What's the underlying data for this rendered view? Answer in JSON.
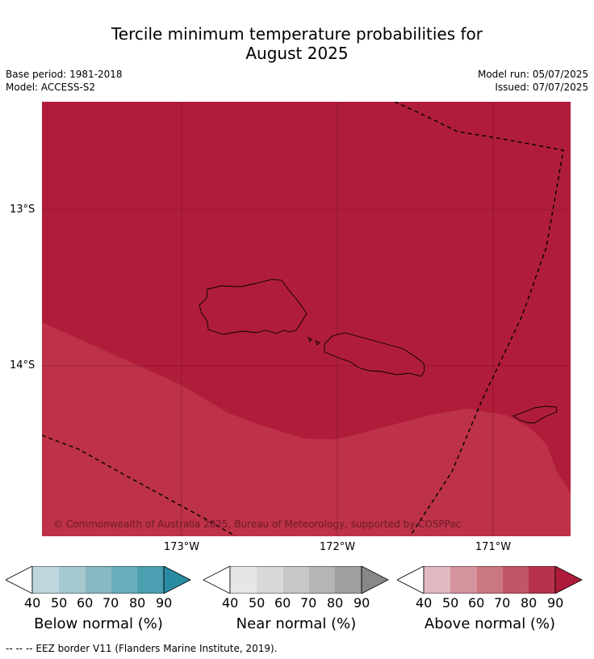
{
  "title_line1": "Tercile minimum temperature probabilities for",
  "title_line2": "August 2025",
  "base_period": "Base period: 1981-2018",
  "model": "Model: ACCESS-S2",
  "model_run": "Model run: 05/07/2025",
  "issued": "Issued: 07/07/2025",
  "lat_labels": [
    "13°S",
    "14°S"
  ],
  "lon_labels": [
    "173°W",
    "172°W",
    "171°W"
  ],
  "copyright": "© Commonwealth of Australia 2025, Bureau of Meteorology, supported by COSPPac",
  "colorbars": [
    {
      "title": "Below normal (%)",
      "ticks": [
        "40",
        "50",
        "60",
        "70",
        "80",
        "90"
      ],
      "colors": [
        "#bfd6dd",
        "#a6c9d0",
        "#88b8c4",
        "#6aaebc",
        "#4b9fb0",
        "#2a8ca3"
      ]
    },
    {
      "title": "Near normal (%)",
      "ticks": [
        "40",
        "50",
        "60",
        "70",
        "80",
        "90"
      ],
      "colors": [
        "#e6e6e6",
        "#d8d8d8",
        "#c8c8c8",
        "#b5b5b5",
        "#a0a0a0",
        "#888888"
      ]
    },
    {
      "title": "Above normal (%)",
      "ticks": [
        "40",
        "50",
        "60",
        "70",
        "80",
        "90"
      ],
      "colors": [
        "#e0b8bf",
        "#d4959f",
        "#cc7883",
        "#c25567",
        "#b8324c",
        "#ae1b3a"
      ]
    }
  ],
  "map_colors": {
    "above_90": "#b01d3a",
    "above_80": "#bd3248"
  },
  "footnote": "-- -- -- EEZ border V11 (Flanders Marine Institute, 2019)."
}
